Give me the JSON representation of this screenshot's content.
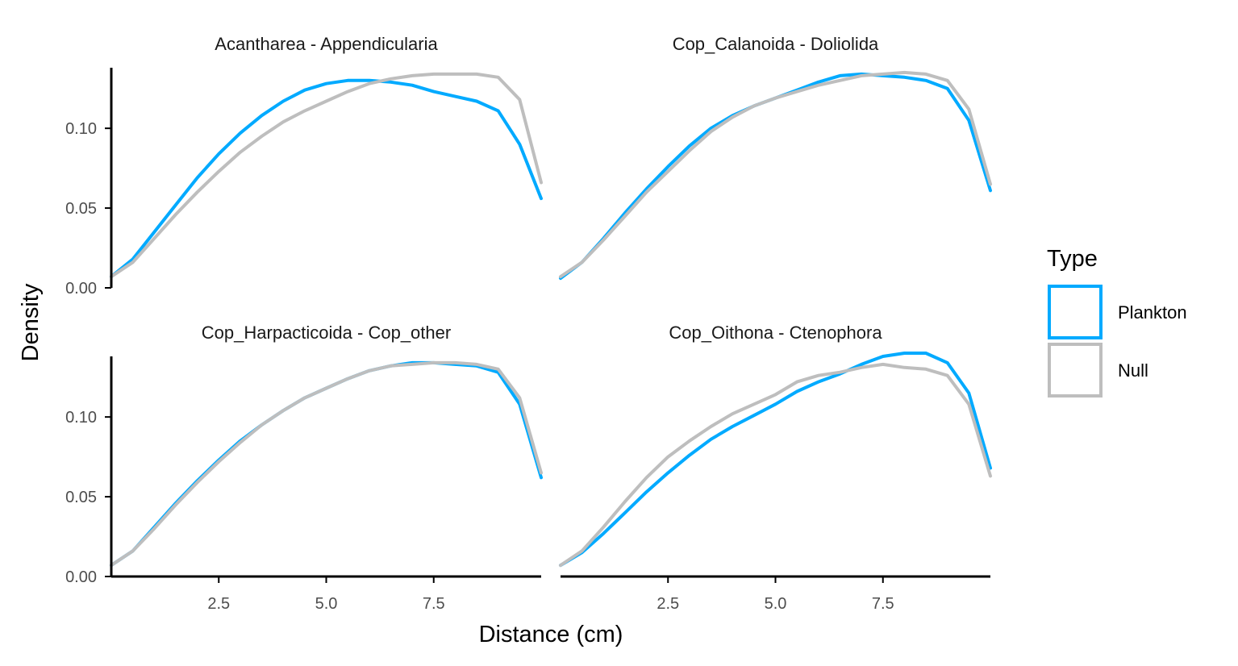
{
  "chart_data": {
    "type": "line",
    "xlabel": "Distance (cm)",
    "ylabel": "Density",
    "xlim": [
      0,
      10
    ],
    "ylim": [
      0,
      0.14
    ],
    "xticks": [
      2.5,
      5.0,
      7.5
    ],
    "xtick_labels": [
      "2.5",
      "5.0",
      "7.5"
    ],
    "yticks": [
      0.0,
      0.05,
      0.1
    ],
    "ytick_labels": [
      "0.00",
      "0.05",
      "0.10"
    ],
    "grid": false,
    "legend": {
      "title": "Type",
      "position": "right",
      "entries": [
        {
          "label": "Plankton",
          "color": "#00AAFF"
        },
        {
          "label": "Null",
          "color": "#BEBEBE"
        }
      ]
    },
    "x": [
      0,
      0.5,
      1,
      1.5,
      2,
      2.5,
      3,
      3.5,
      4,
      4.5,
      5,
      5.5,
      6,
      6.5,
      7,
      7.5,
      8,
      8.5,
      9,
      9.5,
      10
    ],
    "panels": [
      {
        "title": "Acantharea - Appendicularia",
        "series": [
          {
            "name": "Plankton",
            "color": "#00AAFF",
            "values": [
              0.007,
              0.018,
              0.035,
              0.052,
              0.069,
              0.084,
              0.097,
              0.108,
              0.117,
              0.124,
              0.128,
              0.13,
              0.13,
              0.129,
              0.127,
              0.123,
              0.12,
              0.117,
              0.111,
              0.09,
              0.056
            ]
          },
          {
            "name": "Null",
            "color": "#BEBEBE",
            "values": [
              0.007,
              0.016,
              0.031,
              0.046,
              0.06,
              0.073,
              0.085,
              0.095,
              0.104,
              0.111,
              0.117,
              0.123,
              0.128,
              0.131,
              0.133,
              0.134,
              0.134,
              0.134,
              0.132,
              0.118,
              0.066
            ]
          }
        ]
      },
      {
        "title": "Cop_Calanoida - Doliolida",
        "series": [
          {
            "name": "Plankton",
            "color": "#00AAFF",
            "values": [
              0.006,
              0.016,
              0.031,
              0.047,
              0.062,
              0.076,
              0.089,
              0.1,
              0.108,
              0.114,
              0.119,
              0.124,
              0.129,
              0.133,
              0.134,
              0.133,
              0.132,
              0.13,
              0.125,
              0.105,
              0.061
            ]
          },
          {
            "name": "Null",
            "color": "#BEBEBE",
            "values": [
              0.007,
              0.016,
              0.03,
              0.045,
              0.06,
              0.073,
              0.086,
              0.098,
              0.107,
              0.114,
              0.119,
              0.123,
              0.127,
              0.13,
              0.133,
              0.134,
              0.135,
              0.134,
              0.13,
              0.112,
              0.065
            ]
          }
        ]
      },
      {
        "title": "Cop_Harpacticoida - Cop_other",
        "series": [
          {
            "name": "Plankton",
            "color": "#00AAFF",
            "values": [
              0.007,
              0.016,
              0.031,
              0.046,
              0.06,
              0.073,
              0.085,
              0.095,
              0.104,
              0.112,
              0.118,
              0.124,
              0.129,
              0.132,
              0.134,
              0.134,
              0.133,
              0.132,
              0.128,
              0.108,
              0.062
            ]
          },
          {
            "name": "Null",
            "color": "#BEBEBE",
            "values": [
              0.007,
              0.016,
              0.03,
              0.045,
              0.059,
              0.072,
              0.084,
              0.095,
              0.104,
              0.112,
              0.118,
              0.124,
              0.129,
              0.132,
              0.133,
              0.134,
              0.134,
              0.133,
              0.13,
              0.112,
              0.065
            ]
          }
        ]
      },
      {
        "title": "Cop_Oithona - Ctenophora",
        "series": [
          {
            "name": "Plankton",
            "color": "#00AAFF",
            "values": [
              0.007,
              0.015,
              0.027,
              0.04,
              0.053,
              0.065,
              0.076,
              0.086,
              0.094,
              0.101,
              0.108,
              0.116,
              0.122,
              0.127,
              0.133,
              0.138,
              0.14,
              0.14,
              0.134,
              0.115,
              0.068
            ]
          },
          {
            "name": "Null",
            "color": "#BEBEBE",
            "values": [
              0.007,
              0.016,
              0.031,
              0.047,
              0.062,
              0.075,
              0.085,
              0.094,
              0.102,
              0.108,
              0.114,
              0.122,
              0.126,
              0.128,
              0.131,
              0.133,
              0.131,
              0.13,
              0.126,
              0.108,
              0.063
            ]
          }
        ]
      }
    ]
  }
}
